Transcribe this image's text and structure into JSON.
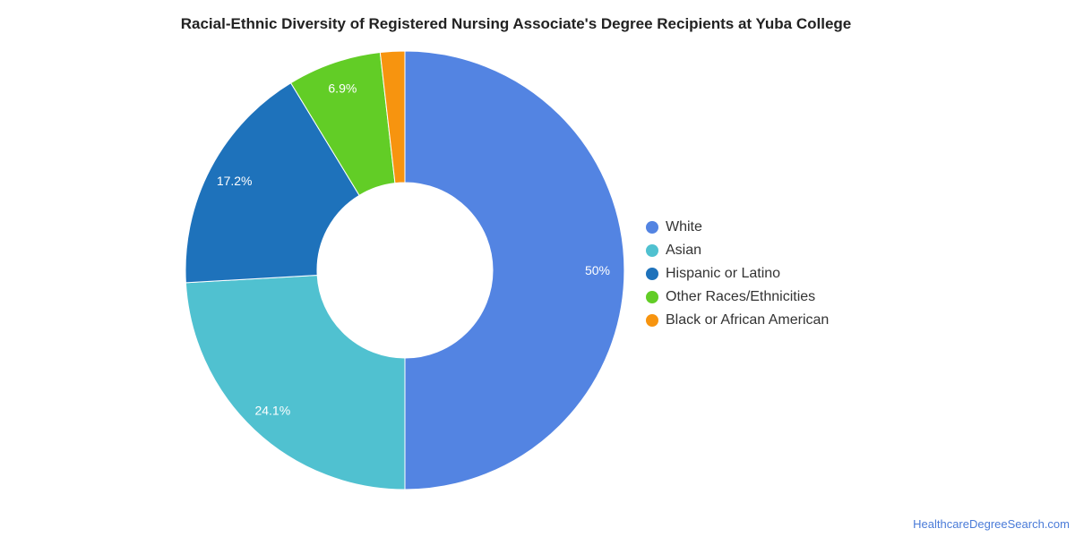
{
  "chart_data": {
    "type": "pie",
    "title": "Racial-Ethnic Diversity of Registered Nursing Associate's Degree Recipients at Yuba College",
    "donut": true,
    "legend_position": "right",
    "slices": [
      {
        "label": "White",
        "value": 50,
        "display": "50%",
        "color": "#5384e2"
      },
      {
        "label": "Black or African American",
        "value": 1.8,
        "display": "",
        "color": "#f7940f"
      },
      {
        "label": "Other Races/Ethnicities",
        "value": 6.9,
        "display": "6.9%",
        "color": "#62cd26"
      },
      {
        "label": "Hispanic or Latino",
        "value": 17.2,
        "display": "17.2%",
        "color": "#1e72bb"
      },
      {
        "label": "Asian",
        "value": 24.1,
        "display": "24.1%",
        "color": "#50c1d0"
      }
    ],
    "legend": [
      {
        "label": "White",
        "color": "#5384e2"
      },
      {
        "label": "Asian",
        "color": "#50c1d0"
      },
      {
        "label": "Hispanic or Latino",
        "color": "#1e72bb"
      },
      {
        "label": "Other Races/Ethnicities",
        "color": "#62cd26"
      },
      {
        "label": "Black or African American",
        "color": "#f7940f"
      }
    ]
  },
  "source": "HealthcareDegreeSearch.com"
}
